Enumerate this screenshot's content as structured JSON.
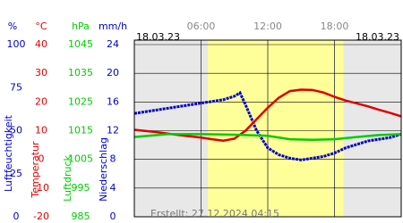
{
  "chart_data": {
    "type": "line",
    "dates": [
      "18.03.23",
      "18.03.23"
    ],
    "footer": "Erstellt: 27.12.2024 04:15",
    "xlim": [
      0,
      24
    ],
    "xticks": [
      {
        "value": 6,
        "label": "06:00"
      },
      {
        "value": 12,
        "label": "12:00"
      },
      {
        "value": 18,
        "label": "18:00"
      }
    ],
    "daylight": [
      6.6,
      18.8
    ],
    "grid": true,
    "axes": [
      {
        "unit": "%",
        "title": "Luftfeuchtigkeit",
        "color": "#0000cc",
        "ylim": [
          0,
          100
        ],
        "yticks": [
          0,
          25,
          50,
          75,
          100
        ]
      },
      {
        "unit": "°C",
        "title": "Temperatur",
        "color": "#dd0000",
        "ylim": [
          -20,
          40
        ],
        "yticks": [
          -20,
          -10,
          0,
          10,
          20,
          30,
          40
        ]
      },
      {
        "unit": "hPa",
        "title": "Luftdruck",
        "color": "#00cc00",
        "ylim": [
          985,
          1045
        ],
        "yticks": [
          985,
          995,
          1005,
          1015,
          1025,
          1035,
          1045
        ]
      },
      {
        "unit": "mm/h",
        "title": "Niederschlag",
        "color": "#0000cc",
        "ylim": [
          0,
          24
        ],
        "yticks": [
          0,
          4,
          8,
          12,
          16,
          20,
          24
        ]
      }
    ],
    "series": [
      {
        "axis": 0,
        "color": "#0000cc",
        "x": [
          0,
          2,
          4,
          6,
          8,
          9,
          9.5,
          10,
          11,
          12,
          13,
          14,
          15,
          16,
          17,
          18,
          19,
          20,
          21,
          22,
          23,
          24
        ],
        "values": [
          60,
          62,
          64,
          66,
          68,
          70,
          72,
          65,
          50,
          40,
          36,
          34,
          33,
          34,
          35,
          37,
          40,
          42,
          44,
          45,
          46,
          48
        ]
      },
      {
        "axis": 1,
        "color": "#dd0000",
        "x": [
          0,
          2,
          4,
          6,
          7,
          8,
          9,
          10,
          11,
          12,
          13,
          14,
          15,
          16,
          17,
          18,
          19,
          20,
          21,
          22,
          23,
          24
        ],
        "values": [
          10.3,
          9.5,
          8.5,
          7.6,
          7.0,
          6.5,
          7.2,
          10,
          14,
          18,
          21.5,
          23.8,
          24.3,
          24.2,
          23.3,
          21.8,
          20.5,
          19.5,
          18.5,
          17.3,
          16.2,
          15
        ]
      },
      {
        "axis": 2,
        "color": "#00cc00",
        "x": [
          0,
          3,
          6,
          9,
          12,
          14,
          16,
          18,
          20,
          22,
          24
        ],
        "values": [
          1012.8,
          1013.8,
          1013.8,
          1013.6,
          1013.2,
          1012.0,
          1011.8,
          1012.0,
          1012.8,
          1013.5,
          1013.8
        ]
      }
    ]
  }
}
